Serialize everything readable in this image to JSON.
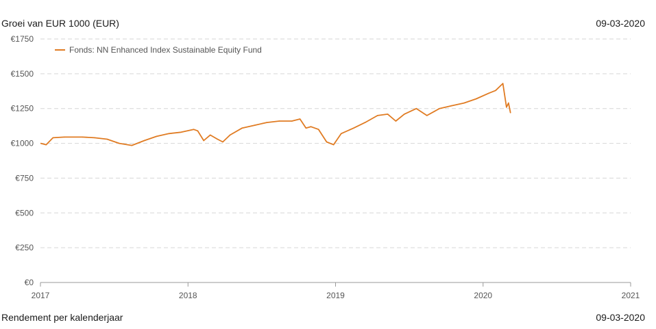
{
  "header": {
    "title": "Groei van EUR 1000 (EUR)",
    "date": "09-03-2020"
  },
  "footer": {
    "label": "Rendement per kalenderjaar",
    "date": "09-03-2020"
  },
  "colors": {
    "series": "#e07b22",
    "grid": "#d6d6d6",
    "axis": "#999999"
  },
  "chart_data": {
    "type": "line",
    "grid": true,
    "legend_position": "top-left",
    "ylim": [
      0,
      1750
    ],
    "yticks": [
      0,
      250,
      500,
      750,
      1000,
      1250,
      1500,
      1750
    ],
    "ytick_labels": [
      "€0",
      "€250",
      "€500",
      "€750",
      "€1000",
      "€1250",
      "€1500",
      "€1750"
    ],
    "xlim": [
      2017,
      2021
    ],
    "xticks": [
      2017,
      2018,
      2019,
      2020,
      2021
    ],
    "xtick_labels": [
      "2017",
      "2018",
      "2019",
      "2020",
      "2021"
    ],
    "series": [
      {
        "name": "Fonds: NN Enhanced Index Sustainable Equity Fund",
        "x": [
          "2017-01-02",
          "2017-01-15",
          "2017-02-01",
          "2017-03-01",
          "2017-04-15",
          "2017-05-15",
          "2017-06-15",
          "2017-07-15",
          "2017-08-15",
          "2017-09-15",
          "2017-10-15",
          "2017-11-15",
          "2017-12-15",
          "2018-01-15",
          "2018-01-25",
          "2018-02-09",
          "2018-02-25",
          "2018-03-15",
          "2018-03-28",
          "2018-04-15",
          "2018-05-15",
          "2018-06-15",
          "2018-07-15",
          "2018-08-15",
          "2018-09-15",
          "2018-10-05",
          "2018-10-20",
          "2018-11-01",
          "2018-11-20",
          "2018-12-10",
          "2018-12-27",
          "2019-01-15",
          "2019-02-15",
          "2019-03-15",
          "2019-04-15",
          "2019-05-10",
          "2019-05-30",
          "2019-06-20",
          "2019-07-20",
          "2019-08-15",
          "2019-09-15",
          "2019-10-15",
          "2019-11-15",
          "2019-12-15",
          "2020-01-15",
          "2020-02-01",
          "2020-02-19",
          "2020-02-28",
          "2020-03-04",
          "2020-03-09"
        ],
        "y": [
          1000,
          990,
          1040,
          1045,
          1045,
          1040,
          1030,
          1000,
          985,
          1020,
          1050,
          1070,
          1080,
          1100,
          1090,
          1020,
          1060,
          1030,
          1010,
          1060,
          1110,
          1130,
          1150,
          1160,
          1160,
          1175,
          1110,
          1120,
          1100,
          1010,
          990,
          1070,
          1110,
          1150,
          1200,
          1210,
          1160,
          1210,
          1250,
          1200,
          1250,
          1270,
          1290,
          1320,
          1360,
          1380,
          1430,
          1260,
          1290,
          1220
        ]
      }
    ]
  }
}
